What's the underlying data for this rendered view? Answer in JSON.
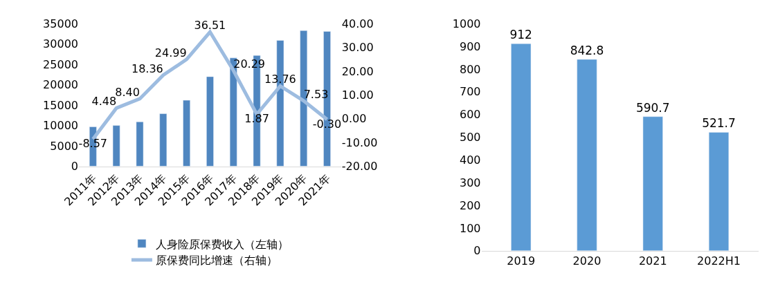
{
  "chart_data": [
    {
      "type": "bar",
      "categories": [
        "2011年",
        "2012年",
        "2013年",
        "2014年",
        "2015年",
        "2016年",
        "2017年",
        "2018年",
        "2019年",
        "2020年",
        "2021年"
      ],
      "series": [
        {
          "name": "人身险原保费收入（左轴）",
          "type": "bar",
          "color": "#4f86c0",
          "values": [
            9700,
            10000,
            10900,
            12900,
            16200,
            22000,
            26600,
            27200,
            30900,
            33300,
            33100
          ]
        },
        {
          "name": "原保费同比增速（右轴）",
          "type": "line",
          "axis": "y2",
          "color": "#9dbce0",
          "values": [
            -8.57,
            4.48,
            8.4,
            18.36,
            24.99,
            36.51,
            20.29,
            1.87,
            13.76,
            7.53,
            -0.3
          ],
          "value_labels": [
            "-8.57",
            "4.48",
            "8.40",
            "18.36",
            "24.99",
            "36.51",
            "20.29",
            "1.87",
            "13.76",
            "7.53",
            "-0.30"
          ]
        }
      ],
      "ylim": [
        0,
        35000
      ],
      "yticks": [
        0,
        5000,
        10000,
        15000,
        20000,
        25000,
        30000,
        35000
      ],
      "y2lim": [
        -20,
        40
      ],
      "y2ticks": [
        {
          "value": -20,
          "label": "-20.00"
        },
        {
          "value": -10,
          "label": "-10.00"
        },
        {
          "value": 0,
          "label": "0.00"
        },
        {
          "value": 10,
          "label": "10.00"
        },
        {
          "value": 20,
          "label": "20.00"
        },
        {
          "value": 30,
          "label": "30.00"
        },
        {
          "value": 40,
          "label": "40.00"
        }
      ],
      "legend": "bottom",
      "marker": "none",
      "line_style": "solid"
    },
    {
      "type": "bar",
      "categories": [
        "2019",
        "2020",
        "2021",
        "2022H1"
      ],
      "series": [
        {
          "color": "#5b9bd5",
          "values": [
            912,
            842.8,
            590.7,
            521.7
          ]
        }
      ],
      "ylim": [
        0,
        1000
      ],
      "yticks": [
        0,
        100,
        200,
        300,
        400,
        500,
        600,
        700,
        800,
        900,
        1000
      ],
      "legend": false,
      "data_labels": true
    }
  ]
}
